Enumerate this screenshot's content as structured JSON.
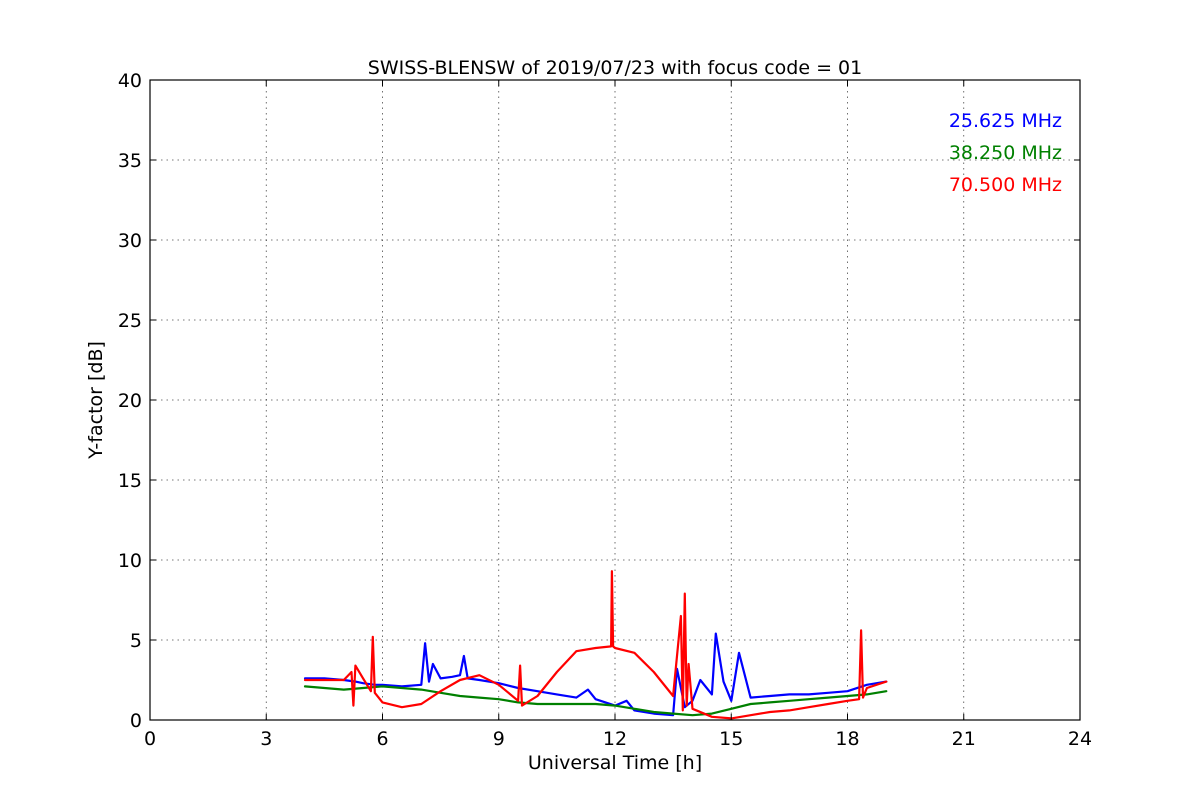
{
  "chart_data": {
    "type": "line",
    "title": "SWISS-BLENSW of 2019/07/23 with focus code = 01",
    "xlabel": "Universal Time [h]",
    "ylabel": "Y-factor [dB]",
    "xlim": [
      0,
      24
    ],
    "ylim": [
      0,
      40
    ],
    "xticks": [
      0,
      3,
      6,
      9,
      12,
      15,
      18,
      21,
      24
    ],
    "yticks": [
      0,
      5,
      10,
      15,
      20,
      25,
      30,
      35,
      40
    ],
    "grid": true,
    "legend_position": "top-right",
    "series": [
      {
        "name": "25.625 MHz",
        "color": "#0000ff",
        "x": [
          4.0,
          4.5,
          5.0,
          5.3,
          5.5,
          5.8,
          6.0,
          6.5,
          7.0,
          7.1,
          7.2,
          7.3,
          7.5,
          7.8,
          8.0,
          8.1,
          8.2,
          8.5,
          9.0,
          9.5,
          10.0,
          10.5,
          11.0,
          11.3,
          11.5,
          12.0,
          12.3,
          12.5,
          13.0,
          13.5,
          13.6,
          13.8,
          14.0,
          14.2,
          14.5,
          14.6,
          14.8,
          15.0,
          15.2,
          15.5,
          16.0,
          16.5,
          17.0,
          17.5,
          18.0,
          18.5,
          19.0
        ],
        "y": [
          2.6,
          2.6,
          2.5,
          2.4,
          2.3,
          2.2,
          2.2,
          2.1,
          2.2,
          4.8,
          2.4,
          3.5,
          2.6,
          2.7,
          2.8,
          4.0,
          2.6,
          2.5,
          2.3,
          2.0,
          1.8,
          1.6,
          1.4,
          1.9,
          1.3,
          0.9,
          1.2,
          0.6,
          0.4,
          0.3,
          3.2,
          0.8,
          1.2,
          2.5,
          1.6,
          5.4,
          2.4,
          1.2,
          4.2,
          1.4,
          1.5,
          1.6,
          1.6,
          1.7,
          1.8,
          2.2,
          2.4
        ]
      },
      {
        "name": "38.250 MHz",
        "color": "#008000",
        "x": [
          4.0,
          4.5,
          5.0,
          5.5,
          6.0,
          6.5,
          7.0,
          7.5,
          8.0,
          8.5,
          9.0,
          9.5,
          10.0,
          10.5,
          11.0,
          11.5,
          12.0,
          12.5,
          13.0,
          13.5,
          14.0,
          14.5,
          15.0,
          15.5,
          16.0,
          16.5,
          17.0,
          17.5,
          18.0,
          18.5,
          19.0
        ],
        "y": [
          2.1,
          2.0,
          1.9,
          2.0,
          2.1,
          2.0,
          1.9,
          1.7,
          1.5,
          1.4,
          1.3,
          1.1,
          1.0,
          1.0,
          1.0,
          1.0,
          0.9,
          0.7,
          0.5,
          0.4,
          0.3,
          0.4,
          0.7,
          1.0,
          1.1,
          1.2,
          1.3,
          1.4,
          1.5,
          1.6,
          1.8
        ]
      },
      {
        "name": "70.500 MHz",
        "color": "#ff0000",
        "x": [
          4.0,
          4.5,
          5.0,
          5.2,
          5.25,
          5.3,
          5.5,
          5.7,
          5.75,
          5.8,
          6.0,
          6.5,
          7.0,
          7.5,
          8.0,
          8.5,
          9.0,
          9.5,
          9.55,
          9.6,
          10.0,
          10.5,
          11.0,
          11.5,
          11.9,
          11.92,
          11.95,
          12.0,
          12.5,
          13.0,
          13.5,
          13.7,
          13.75,
          13.8,
          13.85,
          13.9,
          14.0,
          14.5,
          15.0,
          15.5,
          16.0,
          16.5,
          17.0,
          17.5,
          18.0,
          18.3,
          18.35,
          18.4,
          18.5,
          19.0
        ],
        "y": [
          2.5,
          2.5,
          2.5,
          3.0,
          0.9,
          3.4,
          2.6,
          1.8,
          5.2,
          1.7,
          1.1,
          0.8,
          1.0,
          1.8,
          2.5,
          2.8,
          2.2,
          1.2,
          3.4,
          0.9,
          1.5,
          3.0,
          4.3,
          4.5,
          4.6,
          9.3,
          4.6,
          4.5,
          4.2,
          3.0,
          1.5,
          6.5,
          0.6,
          7.9,
          0.9,
          3.5,
          0.7,
          0.2,
          0.1,
          0.3,
          0.5,
          0.6,
          0.8,
          1.0,
          1.2,
          1.3,
          5.6,
          1.4,
          2.0,
          2.4
        ]
      }
    ]
  }
}
